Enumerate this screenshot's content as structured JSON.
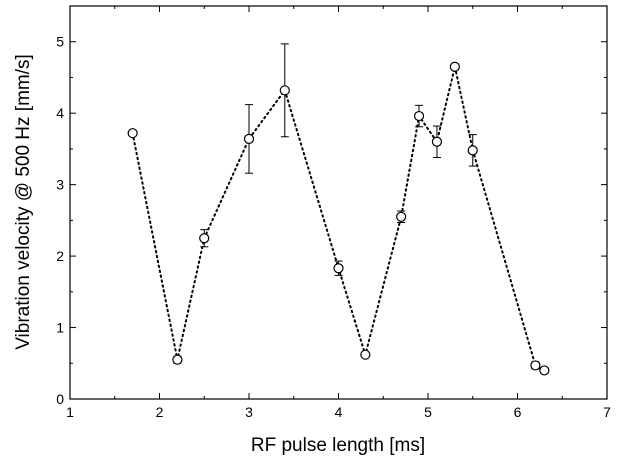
{
  "chart_data": {
    "type": "scatter",
    "title": "",
    "xlabel": "RF pulse length [ms]",
    "ylabel": "Vibration velocity @ 500 Hz [mm/s]",
    "xlim": [
      1,
      7
    ],
    "ylim": [
      0,
      5.5
    ],
    "x_ticks": [
      1,
      2,
      3,
      4,
      5,
      6,
      7
    ],
    "y_ticks": [
      0,
      1,
      2,
      3,
      4,
      5
    ],
    "x_tick_labels": [
      "1",
      "2",
      "3",
      "4",
      "5",
      "6",
      "7"
    ],
    "y_tick_labels": [
      "0",
      "1",
      "2",
      "3",
      "4",
      "5"
    ],
    "grid": false,
    "marker": "open-circle",
    "connect_line": "dotted",
    "series": [
      {
        "points": [
          {
            "x": 1.7,
            "y": 3.72,
            "err": 0.03
          },
          {
            "x": 2.2,
            "y": 0.55,
            "err": 0.05
          },
          {
            "x": 2.5,
            "y": 2.25,
            "err": 0.12
          },
          {
            "x": 3.0,
            "y": 3.64,
            "err": 0.48
          },
          {
            "x": 3.4,
            "y": 4.32,
            "err": 0.65
          },
          {
            "x": 4.0,
            "y": 1.83,
            "err": 0.1
          },
          {
            "x": 4.3,
            "y": 0.62,
            "err": 0.03
          },
          {
            "x": 4.7,
            "y": 2.55,
            "err": 0.08
          },
          {
            "x": 4.9,
            "y": 3.96,
            "err": 0.15
          },
          {
            "x": 5.1,
            "y": 3.6,
            "err": 0.22
          },
          {
            "x": 5.3,
            "y": 4.65,
            "err": 0.04
          },
          {
            "x": 5.5,
            "y": 3.48,
            "err": 0.22
          },
          {
            "x": 6.2,
            "y": 0.47,
            "err": 0.05
          },
          {
            "x": 6.3,
            "y": 0.4,
            "err": 0.04
          }
        ]
      }
    ]
  }
}
